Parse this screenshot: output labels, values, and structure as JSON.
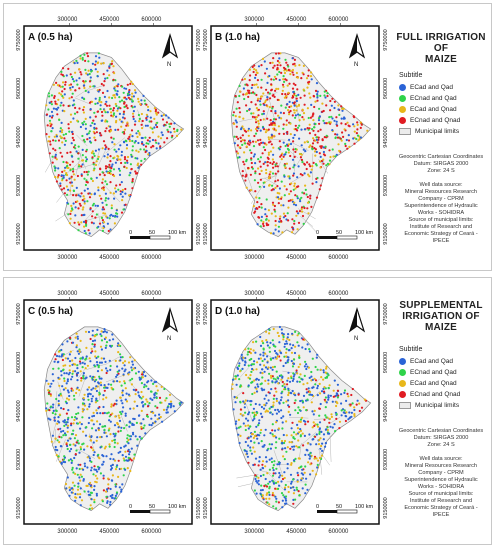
{
  "legend_heading": "Subtitle",
  "categories": [
    {
      "label": "ECad and Qad",
      "color": "#2a63d6"
    },
    {
      "label": "ECnad and Qad",
      "color": "#2fd34a"
    },
    {
      "label": "ECad and Qnad",
      "color": "#e8b71a"
    },
    {
      "label": "ECnad and Qnad",
      "color": "#e01b22"
    }
  ],
  "municipal_label": "Municipal limits",
  "municipal_color": "#ececec",
  "crs": {
    "line1": "Geocentric Cartesian Coordinates",
    "line2": "Datum: SIRGAS 2000",
    "line3": "Zone: 24 S"
  },
  "source_lines": [
    "Well data source:",
    "Mineral Resources Research",
    "Company - CPRM",
    "Superintendence of Hydraulic",
    "Works - SOHIDRA",
    "Source of municipal limits:",
    "Institute of Research and",
    "Economic Strategy of Ceará -",
    "IPECE"
  ],
  "x_ticks": [
    "300000",
    "450000",
    "600000"
  ],
  "y_ticks": [
    "9750000",
    "9600000",
    "9450000",
    "9300000",
    "9150000"
  ],
  "scale_labels": [
    "0",
    "50",
    "100 km"
  ],
  "north_label": "N",
  "groups": [
    {
      "title_lines": [
        "FULL IRRIGATION OF",
        "MAIZE"
      ],
      "panels": [
        {
          "label": "A (0.5 ha)",
          "mix": [
            0.26,
            0.22,
            0.24,
            0.28
          ]
        },
        {
          "label": "B (1.0 ha)",
          "mix": [
            0.16,
            0.16,
            0.26,
            0.42
          ]
        }
      ]
    },
    {
      "title_lines": [
        "SUPPLEMENTAL",
        "IRRIGATION OF",
        "MAIZE"
      ],
      "panels": [
        {
          "label": "C (0.5 ha)",
          "mix": [
            0.48,
            0.22,
            0.22,
            0.08
          ]
        },
        {
          "label": "D (1.0 ha)",
          "mix": [
            0.42,
            0.24,
            0.25,
            0.09
          ]
        }
      ]
    }
  ]
}
